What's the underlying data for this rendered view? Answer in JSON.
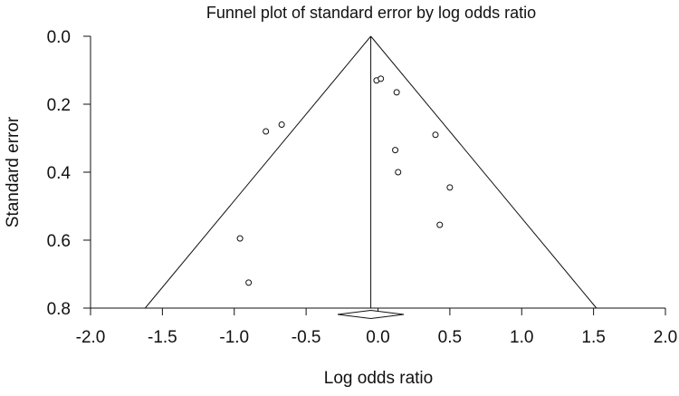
{
  "chart_data": {
    "type": "scatter",
    "title": "Funnel plot of standard error by log odds ratio",
    "xlabel": "Log odds ratio",
    "ylabel": "Standard error",
    "xlim": [
      -2.0,
      2.0
    ],
    "ylim": [
      0.0,
      0.8
    ],
    "y_inverted": true,
    "grid": false,
    "x_ticks": [
      "-2.0",
      "-1.5",
      "-1.0",
      "-0.5",
      "0.0",
      "0.5",
      "1.0",
      "1.5",
      "2.0"
    ],
    "x_tick_values": [
      -2.0,
      -1.5,
      -1.0,
      -0.5,
      0.0,
      0.5,
      1.0,
      1.5,
      2.0
    ],
    "y_ticks": [
      "0.0",
      "0.2",
      "0.4",
      "0.6",
      "0.8"
    ],
    "y_tick_values": [
      0.0,
      0.2,
      0.4,
      0.6,
      0.8
    ],
    "pooled_estimate": -0.05,
    "funnel_left_at_bottom": -1.62,
    "funnel_right_at_bottom": 1.52,
    "summary_diamond": {
      "center": -0.05,
      "lower": -0.28,
      "upper": 0.18
    },
    "points": [
      {
        "x": -0.01,
        "y": 0.13
      },
      {
        "x": 0.02,
        "y": 0.125
      },
      {
        "x": 0.13,
        "y": 0.165
      },
      {
        "x": -0.67,
        "y": 0.26
      },
      {
        "x": -0.78,
        "y": 0.28
      },
      {
        "x": 0.4,
        "y": 0.29
      },
      {
        "x": 0.12,
        "y": 0.335
      },
      {
        "x": 0.14,
        "y": 0.4
      },
      {
        "x": 0.5,
        "y": 0.445
      },
      {
        "x": 0.43,
        "y": 0.555
      },
      {
        "x": -0.96,
        "y": 0.595
      },
      {
        "x": -0.9,
        "y": 0.725
      }
    ]
  }
}
